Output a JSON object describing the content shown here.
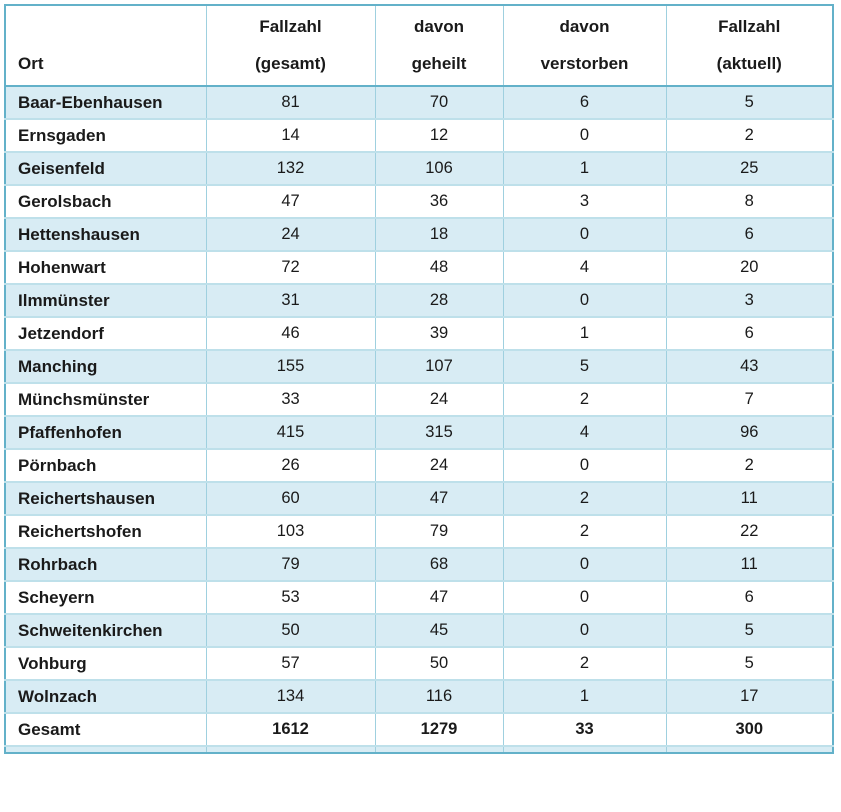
{
  "colors": {
    "stripe_fill": "#d8ecf4",
    "grid_line_vertical": "#9fd0df",
    "row_separator": "#bee0ea",
    "outer_border": "#63b1c9",
    "text": "#1a1a1a"
  },
  "table": {
    "columns": [
      {
        "line1": "",
        "line2": "Ort"
      },
      {
        "line1": "Fallzahl",
        "line2": "(gesamt)"
      },
      {
        "line1": "davon",
        "line2": "geheilt"
      },
      {
        "line1": "davon",
        "line2": "verstorben"
      },
      {
        "line1": "Fallzahl",
        "line2": "(aktuell)"
      }
    ],
    "rows": [
      {
        "ort": "Baar-Ebenhausen",
        "gesamt": "81",
        "geheilt": "70",
        "verstorben": "6",
        "aktuell": "5"
      },
      {
        "ort": "Ernsgaden",
        "gesamt": "14",
        "geheilt": "12",
        "verstorben": "0",
        "aktuell": "2"
      },
      {
        "ort": "Geisenfeld",
        "gesamt": "132",
        "geheilt": "106",
        "verstorben": "1",
        "aktuell": "25"
      },
      {
        "ort": "Gerolsbach",
        "gesamt": "47",
        "geheilt": "36",
        "verstorben": "3",
        "aktuell": "8"
      },
      {
        "ort": "Hettenshausen",
        "gesamt": "24",
        "geheilt": "18",
        "verstorben": "0",
        "aktuell": "6"
      },
      {
        "ort": "Hohenwart",
        "gesamt": "72",
        "geheilt": "48",
        "verstorben": "4",
        "aktuell": "20"
      },
      {
        "ort": "Ilmmünster",
        "gesamt": "31",
        "geheilt": "28",
        "verstorben": "0",
        "aktuell": "3"
      },
      {
        "ort": "Jetzendorf",
        "gesamt": "46",
        "geheilt": "39",
        "verstorben": "1",
        "aktuell": "6"
      },
      {
        "ort": "Manching",
        "gesamt": "155",
        "geheilt": "107",
        "verstorben": "5",
        "aktuell": "43"
      },
      {
        "ort": "Münchsmünster",
        "gesamt": "33",
        "geheilt": "24",
        "verstorben": "2",
        "aktuell": "7"
      },
      {
        "ort": "Pfaffenhofen",
        "gesamt": "415",
        "geheilt": "315",
        "verstorben": "4",
        "aktuell": "96"
      },
      {
        "ort": "Pörnbach",
        "gesamt": "26",
        "geheilt": "24",
        "verstorben": "0",
        "aktuell": "2"
      },
      {
        "ort": "Reichertshausen",
        "gesamt": "60",
        "geheilt": "47",
        "verstorben": "2",
        "aktuell": "11"
      },
      {
        "ort": "Reichertshofen",
        "gesamt": "103",
        "geheilt": "79",
        "verstorben": "2",
        "aktuell": "22"
      },
      {
        "ort": "Rohrbach",
        "gesamt": "79",
        "geheilt": "68",
        "verstorben": "0",
        "aktuell": "11"
      },
      {
        "ort": "Scheyern",
        "gesamt": "53",
        "geheilt": "47",
        "verstorben": "0",
        "aktuell": "6"
      },
      {
        "ort": "Schweitenkirchen",
        "gesamt": "50",
        "geheilt": "45",
        "verstorben": "0",
        "aktuell": "5"
      },
      {
        "ort": "Vohburg",
        "gesamt": "57",
        "geheilt": "50",
        "verstorben": "2",
        "aktuell": "5"
      },
      {
        "ort": "Wolnzach",
        "gesamt": "134",
        "geheilt": "116",
        "verstorben": "1",
        "aktuell": "17"
      }
    ],
    "total_row": {
      "ort": "Gesamt",
      "gesamt": "1612",
      "geheilt": "1279",
      "verstorben": "33",
      "aktuell": "300"
    }
  }
}
